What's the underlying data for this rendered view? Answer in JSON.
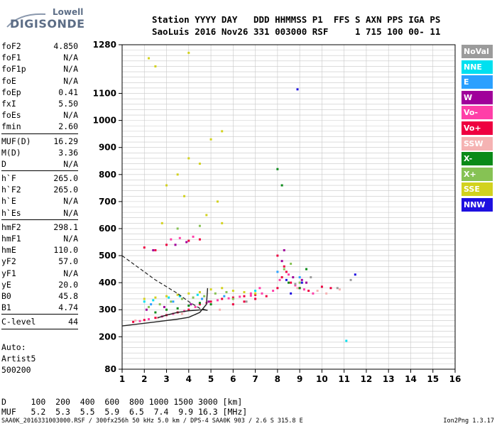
{
  "logo": {
    "line1": "Lowell",
    "line2": "DIGISONDE"
  },
  "header": {
    "line1": "Station YYYY DAY   DDD HHMMSS P1  FFS S AXN PPS IGA PS",
    "line2": "SaoLuis 2016 Nov26 331 003000 RSF     1 715 100 00- 11"
  },
  "params_group1": [
    {
      "name": "foF2",
      "value": "4.850"
    },
    {
      "name": "foF1",
      "value": "N/A"
    },
    {
      "name": "foF1p",
      "value": "N/A"
    },
    {
      "name": "foE",
      "value": "N/A"
    },
    {
      "name": "foEp",
      "value": "0.41"
    },
    {
      "name": "fxI",
      "value": "5.50"
    },
    {
      "name": "foEs",
      "value": "N/A"
    },
    {
      "name": "fmin",
      "value": "2.60"
    }
  ],
  "params_group2": [
    {
      "name": "MUF(D)",
      "value": "16.29"
    },
    {
      "name": "M(D)",
      "value": "3.36"
    },
    {
      "name": "D",
      "value": "N/A"
    }
  ],
  "params_group3": [
    {
      "name": "h`F",
      "value": "265.0"
    },
    {
      "name": "h`F2",
      "value": "265.0"
    },
    {
      "name": "h`E",
      "value": "N/A"
    },
    {
      "name": "h`Es",
      "value": "N/A"
    }
  ],
  "params_group4": [
    {
      "name": "hmF2",
      "value": "298.1"
    },
    {
      "name": "hmF1",
      "value": "N/A"
    },
    {
      "name": "hmE",
      "value": "110.0"
    },
    {
      "name": "yF2",
      "value": "57.0"
    },
    {
      "name": "yF1",
      "value": "N/A"
    },
    {
      "name": "yE",
      "value": "20.0"
    },
    {
      "name": "B0",
      "value": "45.8"
    },
    {
      "name": "B1",
      "value": "4.74"
    }
  ],
  "clevel": {
    "name": "C-level",
    "value": "44"
  },
  "autoscale": [
    "Auto:",
    "Artist5",
    "500200"
  ],
  "footer": {
    "d_line": "D     100  200  400  600  800 1000 1500 3000 [km]",
    "muf_line": "MUF   5.2  5.3  5.5  5.9  6.5  7.4  9.9 16.3 [MHz]",
    "source": "SAA0K_2016331003000.RSF / 300fx256h 50 kHz 5.0 km / DPS-4 SAA0K 903 / 2.6 S 315.8 E",
    "version": "Ion2Png 1.3.17"
  },
  "legend": [
    {
      "label": "NoVal",
      "color": "#9b9b9b"
    },
    {
      "label": "NNE",
      "color": "#00e0f0"
    },
    {
      "label": "E",
      "color": "#2aa0ff"
    },
    {
      "label": "W",
      "color": "#a0009a"
    },
    {
      "label": "Vo-",
      "color": "#ff3fa8"
    },
    {
      "label": "Vo+",
      "color": "#ee0040"
    },
    {
      "label": "SSW",
      "color": "#f5b3b3"
    },
    {
      "label": "X-",
      "color": "#0a8a18"
    },
    {
      "label": "X+",
      "color": "#86c254"
    },
    {
      "label": "SSE",
      "color": "#d2d21e"
    },
    {
      "label": "NNW",
      "color": "#1e10e0"
    }
  ],
  "chart_data": {
    "type": "scatter",
    "x_ticks": [
      1,
      2,
      3,
      4,
      5,
      6,
      7,
      8,
      9,
      10,
      11,
      12,
      13,
      14,
      15,
      16
    ],
    "y_ticks": [
      80,
      200,
      300,
      400,
      500,
      600,
      700,
      800,
      900,
      1000,
      1100,
      1280
    ],
    "xlim": [
      1,
      16
    ],
    "ylim": [
      80,
      1280
    ],
    "grid": true,
    "series": [
      {
        "name": "Vo+",
        "points": [
          [
            1.5,
            255
          ],
          [
            2.0,
            262
          ],
          [
            2.5,
            270
          ],
          [
            3.0,
            280
          ],
          [
            3.5,
            290
          ],
          [
            4.0,
            300
          ],
          [
            4.5,
            320
          ],
          [
            5.0,
            330
          ],
          [
            5.5,
            340
          ],
          [
            6.0,
            345
          ],
          [
            6.5,
            350
          ],
          [
            7.0,
            355
          ],
          [
            7.5,
            350
          ],
          [
            8.0,
            380
          ],
          [
            8.2,
            420
          ],
          [
            8.4,
            440
          ],
          [
            8.6,
            400
          ],
          [
            9.0,
            380
          ],
          [
            9.4,
            370
          ],
          [
            10.0,
            385
          ],
          [
            10.4,
            380
          ],
          [
            2.0,
            530
          ],
          [
            2.5,
            520
          ],
          [
            3.0,
            540
          ],
          [
            4.0,
            555
          ],
          [
            4.5,
            560
          ],
          [
            6.0,
            320
          ],
          [
            6.5,
            330
          ],
          [
            7.0,
            340
          ],
          [
            8.0,
            500
          ],
          [
            8.3,
            460
          ]
        ]
      },
      {
        "name": "Vo-",
        "points": [
          [
            1.8,
            258
          ],
          [
            2.2,
            265
          ],
          [
            2.8,
            275
          ],
          [
            3.3,
            285
          ],
          [
            3.8,
            295
          ],
          [
            4.3,
            310
          ],
          [
            4.8,
            325
          ],
          [
            5.3,
            335
          ],
          [
            5.8,
            342
          ],
          [
            6.3,
            348
          ],
          [
            6.8,
            352
          ],
          [
            7.3,
            360
          ],
          [
            7.8,
            370
          ],
          [
            8.1,
            410
          ],
          [
            8.5,
            430
          ],
          [
            8.8,
            390
          ],
          [
            9.2,
            375
          ],
          [
            9.6,
            360
          ],
          [
            3.2,
            560
          ],
          [
            3.6,
            565
          ],
          [
            4.2,
            570
          ],
          [
            7.2,
            380
          ],
          [
            6.8,
            360
          ]
        ]
      },
      {
        "name": "W",
        "points": [
          [
            2.1,
            300
          ],
          [
            2.9,
            310
          ],
          [
            4.1,
            320
          ],
          [
            4.9,
            330
          ],
          [
            8.2,
            480
          ],
          [
            8.7,
            420
          ],
          [
            9.1,
            410
          ],
          [
            2.4,
            520
          ],
          [
            3.4,
            540
          ],
          [
            3.9,
            550
          ],
          [
            8.3,
            520
          ],
          [
            9.3,
            400
          ]
        ]
      },
      {
        "name": "SSE",
        "points": [
          [
            2.0,
            340
          ],
          [
            2.5,
            345
          ],
          [
            3.0,
            350
          ],
          [
            3.5,
            355
          ],
          [
            4.0,
            360
          ],
          [
            4.5,
            365
          ],
          [
            5.0,
            375
          ],
          [
            5.5,
            380
          ],
          [
            6.0,
            370
          ],
          [
            6.5,
            365
          ],
          [
            7.0,
            360
          ],
          [
            3.5,
            800
          ],
          [
            4.0,
            860
          ],
          [
            4.5,
            840
          ],
          [
            5.0,
            930
          ],
          [
            5.5,
            960
          ],
          [
            3.0,
            760
          ],
          [
            2.8,
            620
          ],
          [
            4.8,
            650
          ],
          [
            3.8,
            720
          ],
          [
            5.3,
            700
          ],
          [
            2.2,
            1230
          ],
          [
            2.5,
            1200
          ],
          [
            4.0,
            1250
          ],
          [
            5.5,
            620
          ]
        ]
      },
      {
        "name": "X+",
        "points": [
          [
            2.2,
            310
          ],
          [
            2.7,
            320
          ],
          [
            3.2,
            330
          ],
          [
            3.7,
            340
          ],
          [
            4.2,
            345
          ],
          [
            4.7,
            350
          ],
          [
            5.2,
            360
          ],
          [
            5.7,
            365
          ],
          [
            3.5,
            600
          ],
          [
            4.5,
            610
          ],
          [
            8.3,
            450
          ],
          [
            8.6,
            470
          ],
          [
            9.0,
            400
          ],
          [
            6.0,
            340
          ]
        ]
      },
      {
        "name": "X-",
        "points": [
          [
            2.5,
            290
          ],
          [
            3.0,
            300
          ],
          [
            3.5,
            305
          ],
          [
            4.0,
            315
          ],
          [
            4.5,
            325
          ],
          [
            5.0,
            320
          ],
          [
            8.5,
            400
          ],
          [
            9.0,
            380
          ],
          [
            8.0,
            820
          ],
          [
            8.2,
            760
          ],
          [
            9.3,
            450
          ]
        ]
      },
      {
        "name": "NNE",
        "points": [
          [
            2.0,
            330
          ],
          [
            2.4,
            335
          ],
          [
            3.1,
            345
          ],
          [
            3.6,
            350
          ],
          [
            4.4,
            355
          ],
          [
            11.1,
            185
          ],
          [
            7.0,
            370
          ]
        ]
      },
      {
        "name": "E",
        "points": [
          [
            2.3,
            320
          ],
          [
            3.3,
            330
          ],
          [
            4.6,
            340
          ],
          [
            5.6,
            350
          ],
          [
            8.0,
            440
          ],
          [
            9.0,
            420
          ]
        ]
      },
      {
        "name": "SSW",
        "points": [
          [
            1.6,
            260
          ],
          [
            2.6,
            270
          ],
          [
            3.7,
            285
          ],
          [
            5.4,
            300
          ],
          [
            8.9,
            380
          ],
          [
            9.8,
            370
          ],
          [
            10.8,
            375
          ],
          [
            10.2,
            360
          ]
        ]
      },
      {
        "name": "NNW",
        "points": [
          [
            8.9,
            1115
          ],
          [
            8.4,
            410
          ],
          [
            9.1,
            400
          ],
          [
            11.5,
            430
          ],
          [
            8.6,
            360
          ]
        ]
      },
      {
        "name": "NoVal",
        "points": [
          [
            8.8,
            395
          ],
          [
            10.7,
            380
          ],
          [
            11.3,
            410
          ],
          [
            9.5,
            420
          ],
          [
            6.6,
            330
          ]
        ]
      }
    ],
    "curves": {
      "virtual_height_trace": [
        [
          1,
          240
        ],
        [
          1.5,
          245
        ],
        [
          2,
          250
        ],
        [
          2.5,
          255
        ],
        [
          3,
          260
        ],
        [
          3.5,
          265
        ],
        [
          4,
          272
        ],
        [
          4.5,
          290
        ],
        [
          4.8,
          320
        ],
        [
          4.85,
          380
        ]
      ],
      "profile_solid": [
        [
          2.6,
          270
        ],
        [
          3.0,
          280
        ],
        [
          3.5,
          290
        ],
        [
          4.0,
          296
        ],
        [
          4.3,
          298
        ],
        [
          4.6,
          300
        ],
        [
          4.85,
          298
        ]
      ],
      "profile_dashed": [
        [
          1,
          500
        ],
        [
          1.5,
          470
        ],
        [
          2,
          440
        ],
        [
          2.5,
          410
        ],
        [
          3,
          385
        ],
        [
          3.5,
          360
        ],
        [
          4.0,
          330
        ],
        [
          4.5,
          305
        ],
        [
          4.85,
          298
        ]
      ]
    }
  }
}
